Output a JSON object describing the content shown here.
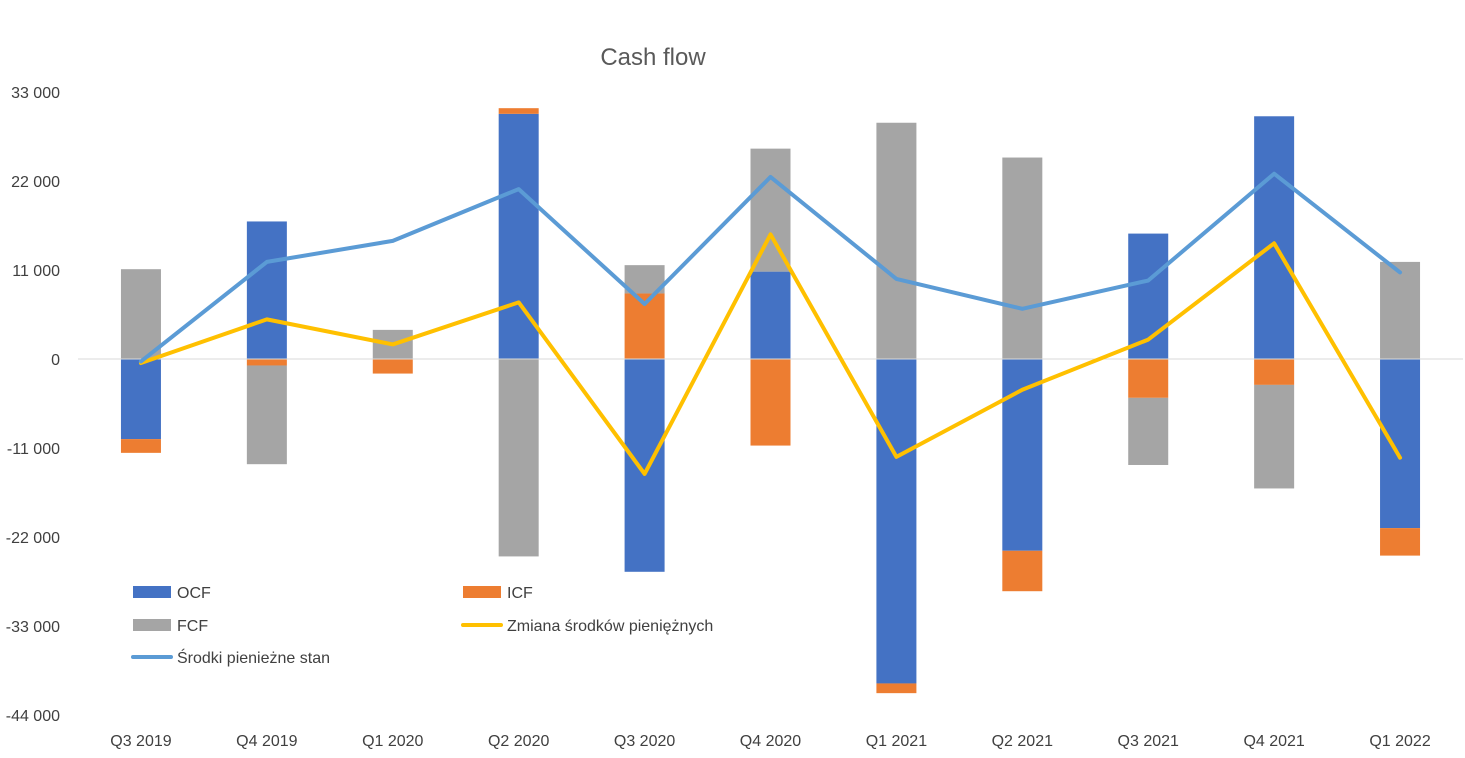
{
  "chart_data": {
    "type": "bar",
    "stacked": true,
    "title": "Cash flow",
    "xlabel": "",
    "ylabel": "",
    "categories": [
      "Q3 2019",
      "Q4 2019",
      "Q1 2020",
      "Q2 2020",
      "Q3 2020",
      "Q4 2020",
      "Q1 2021",
      "Q2 2021",
      "Q3 2021",
      "Q4 2021",
      "Q1 2022"
    ],
    "ylim": [
      -44000,
      33000
    ],
    "yticks": [
      33000,
      22000,
      11000,
      0,
      -11000,
      -22000,
      -33000,
      -44000
    ],
    "ytick_labels": [
      "33 000",
      "22 000",
      "11 000",
      "0",
      "-11 000",
      "-22 000",
      "-33 000",
      "-44 000"
    ],
    "grid": false,
    "legend_position": "bottom-left",
    "series": [
      {
        "name": "OCF",
        "kind": "bar",
        "color": "#4472C4",
        "values": [
          -9900,
          17000,
          0,
          30300,
          -26300,
          10800,
          -40100,
          -23700,
          15500,
          30000,
          -20900
        ]
      },
      {
        "name": "ICF",
        "kind": "bar",
        "color": "#ED7D31",
        "values": [
          -1700,
          -800,
          -1800,
          700,
          8100,
          -10700,
          -1200,
          -5000,
          -4800,
          -3200,
          -3400
        ]
      },
      {
        "name": "FCF",
        "kind": "bar",
        "color": "#A5A5A5",
        "values": [
          11100,
          -12200,
          3600,
          -24400,
          3500,
          15200,
          29200,
          24900,
          -8300,
          -12800,
          12000
        ]
      },
      {
        "name": "Zmiana środków pieniężnych",
        "kind": "line",
        "color": "#FFC000",
        "values": [
          -500,
          4900,
          1800,
          7000,
          -14200,
          15400,
          -12100,
          -3800,
          2400,
          14300,
          -12200
        ]
      },
      {
        "name": "Środki pienieżne stan",
        "kind": "line",
        "color": "#5B9BD5",
        "values": [
          -300,
          12000,
          14600,
          21000,
          6800,
          22500,
          9900,
          6200,
          9700,
          22900,
          10700
        ]
      }
    ]
  }
}
